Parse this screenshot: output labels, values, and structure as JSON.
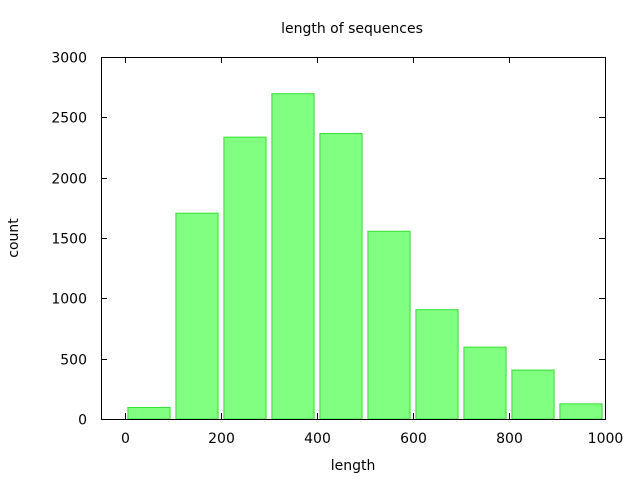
{
  "chart_data": {
    "type": "bar",
    "title": "length of sequences",
    "xlabel": "length",
    "ylabel": "count",
    "xlim": [
      -50,
      1000
    ],
    "ylim": [
      0,
      3000
    ],
    "bar_width": 90,
    "x_ticks": [
      0,
      200,
      400,
      600,
      800,
      1000
    ],
    "y_ticks": [
      0,
      500,
      1000,
      1500,
      2000,
      2500,
      3000
    ],
    "series": [
      {
        "x": [
          50,
          150,
          250,
          350,
          450,
          550,
          650,
          750,
          850,
          950
        ],
        "values": [
          100,
          1710,
          2340,
          2700,
          2370,
          1560,
          910,
          600,
          410,
          130
        ],
        "fill": "#80ff80",
        "stroke": "#33e033"
      }
    ],
    "grid": false,
    "legend": "none"
  }
}
